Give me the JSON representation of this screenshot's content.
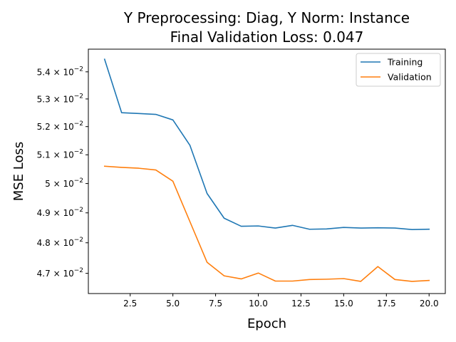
{
  "chart_data": {
    "type": "line",
    "title": [
      "Y Preprocessing: Diag, Y Norm: Instance",
      "Final Validation Loss: 0.047"
    ],
    "xlabel": "Epoch",
    "ylabel": "MSE Loss",
    "y_scale": "log",
    "xlim": [
      0.05,
      20.95
    ],
    "ylim": [
      0.04635,
      0.05485
    ],
    "x_ticks": [
      2.5,
      5.0,
      7.5,
      10.0,
      12.5,
      15.0,
      17.5,
      20.0
    ],
    "x_tick_labels": [
      "2.5",
      "5.0",
      "7.5",
      "10.0",
      "12.5",
      "15.0",
      "17.5",
      "20.0"
    ],
    "y_ticks": [
      {
        "value": 0.047,
        "mantissa": "4.7"
      },
      {
        "value": 0.048,
        "mantissa": "4.8"
      },
      {
        "value": 0.049,
        "mantissa": "4.9"
      },
      {
        "value": 0.05,
        "mantissa": "5"
      },
      {
        "value": 0.051,
        "mantissa": "5.1"
      },
      {
        "value": 0.052,
        "mantissa": "5.2"
      },
      {
        "value": 0.053,
        "mantissa": "5.3"
      },
      {
        "value": 0.054,
        "mantissa": "5.4"
      }
    ],
    "y_tick_base": "10",
    "y_tick_exponent": "−2",
    "legend_position": "top-right",
    "grid": false,
    "x": [
      1,
      2,
      3,
      4,
      5,
      6,
      7,
      8,
      9,
      10,
      11,
      12,
      13,
      14,
      15,
      16,
      17,
      18,
      19,
      20
    ],
    "series": [
      {
        "name": "Training",
        "color": "#1f77b4",
        "values": [
          0.05447,
          0.0525,
          0.05247,
          0.05244,
          0.05224,
          0.05133,
          0.04966,
          0.04882,
          0.04855,
          0.04856,
          0.04849,
          0.04858,
          0.04845,
          0.04846,
          0.04851,
          0.04849,
          0.0485,
          0.04849,
          0.04844,
          0.04845
        ]
      },
      {
        "name": "Validation",
        "color": "#ff7f0e",
        "values": [
          0.0506,
          0.05056,
          0.05053,
          0.05047,
          0.05008,
          0.0487,
          0.04736,
          0.04692,
          0.04682,
          0.04701,
          0.04675,
          0.04675,
          0.0468,
          0.04681,
          0.04683,
          0.04674,
          0.04722,
          0.0468,
          0.04674,
          0.04677
        ]
      }
    ]
  }
}
